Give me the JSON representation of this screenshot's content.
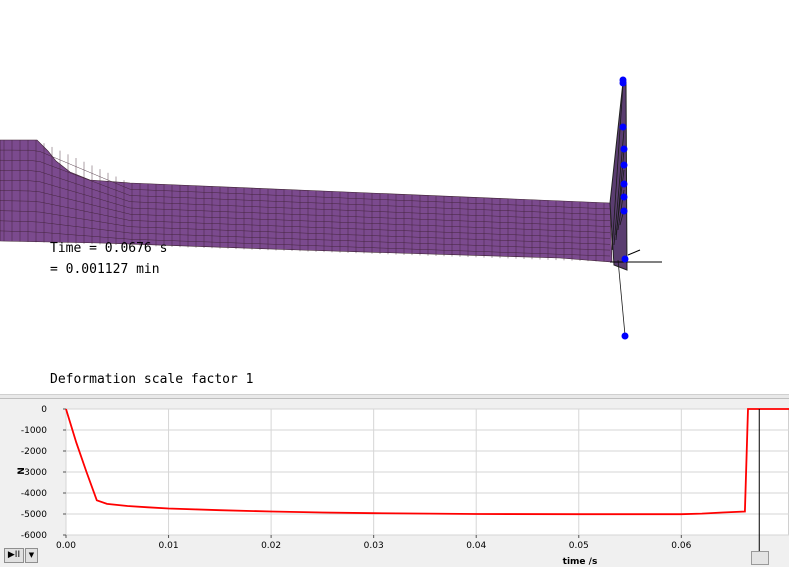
{
  "viewport": {
    "time_label": "Time = 0.0676 s",
    "time_min_label": "= 0.001127 min",
    "scale_label": "Deformation scale factor 1",
    "mesh_color": "#7b4a8e",
    "grid_color": "#3b1f2f",
    "node_color": "#0000ff"
  },
  "plot": {
    "ylabel": "N",
    "xlabel": "time /s",
    "x_ticks": [
      "0.00",
      "0.01",
      "0.02",
      "0.03",
      "0.04",
      "0.05",
      "0.06"
    ],
    "y_ticks": [
      "0",
      "-1000",
      "-2000",
      "-3000",
      "-4000",
      "-5000",
      "-6000"
    ],
    "line_color": "#ff0000",
    "cursor_time": 0.0676
  },
  "controls": {
    "play_icon": "play-pause-icon",
    "play_label": "▶II",
    "dropdown_icon": "chevron-down-icon",
    "dropdown_label": "▼"
  },
  "chart_data": {
    "type": "line",
    "xlabel": "time /s",
    "ylabel": "N",
    "xlim": [
      0,
      0.0705
    ],
    "ylim": [
      -6000,
      0
    ],
    "grid": true,
    "series": [
      {
        "x": [
          0,
          0.001,
          0.002,
          0.003,
          0.004,
          0.006,
          0.008,
          0.01,
          0.015,
          0.02,
          0.025,
          0.03,
          0.04,
          0.05,
          0.06,
          0.062,
          0.064,
          0.0662,
          0.0665,
          0.0705
        ],
        "y": [
          0,
          -1600,
          -3000,
          -4350,
          -4520,
          -4620,
          -4680,
          -4740,
          -4820,
          -4880,
          -4930,
          -4960,
          -5000,
          -5010,
          -5010,
          -4980,
          -4930,
          -4880,
          0,
          0
        ]
      }
    ]
  }
}
